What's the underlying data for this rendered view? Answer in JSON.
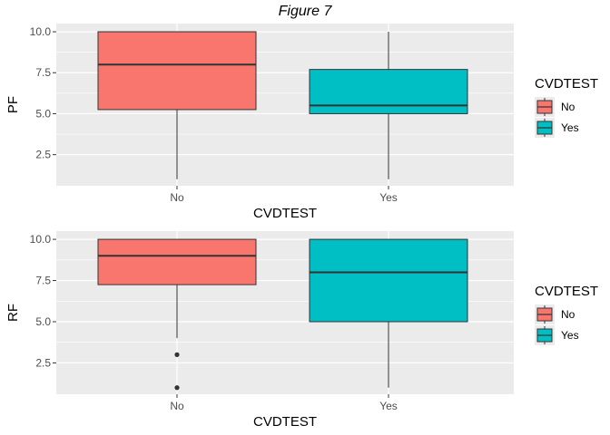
{
  "title": "Figure 7",
  "colors": {
    "No": "#F8766D",
    "Yes": "#00BFC4",
    "panel": "#EBEBEB",
    "grid": "#FFFFFF",
    "line": "#333333"
  },
  "chart_data": [
    {
      "type": "boxplot",
      "xlabel": "CVDTEST",
      "ylabel": "PF",
      "categories": [
        "No",
        "Yes"
      ],
      "ylim": [
        0.6,
        10.5
      ],
      "yticks": [
        2.5,
        5.0,
        7.5,
        10.0
      ],
      "ytick_labels": [
        "2.5",
        "5.0",
        "7.5",
        "10.0"
      ],
      "grid": true,
      "legend": {
        "title": "CVDTEST",
        "entries": [
          "No",
          "Yes"
        ],
        "placement": "right"
      },
      "boxes": [
        {
          "category": "No",
          "min": 1,
          "q1": 5.25,
          "median": 8,
          "q3": 10,
          "max": 10,
          "outliers": []
        },
        {
          "category": "Yes",
          "min": 1,
          "q1": 5,
          "median": 5.5,
          "q3": 7.7,
          "max": 10,
          "outliers": []
        }
      ]
    },
    {
      "type": "boxplot",
      "xlabel": "CVDTEST",
      "ylabel": "RF",
      "categories": [
        "No",
        "Yes"
      ],
      "ylim": [
        0.6,
        10.5
      ],
      "yticks": [
        2.5,
        5.0,
        7.5,
        10.0
      ],
      "ytick_labels": [
        "2.5",
        "5.0",
        "7.5",
        "10.0"
      ],
      "grid": true,
      "legend": {
        "title": "CVDTEST",
        "entries": [
          "No",
          "Yes"
        ],
        "placement": "right"
      },
      "boxes": [
        {
          "category": "No",
          "min": 4,
          "q1": 7.25,
          "median": 9,
          "q3": 10,
          "max": 10,
          "outliers": [
            3,
            1
          ]
        },
        {
          "category": "Yes",
          "min": 1,
          "q1": 5,
          "median": 8,
          "q3": 10,
          "max": 10,
          "outliers": []
        }
      ]
    }
  ]
}
